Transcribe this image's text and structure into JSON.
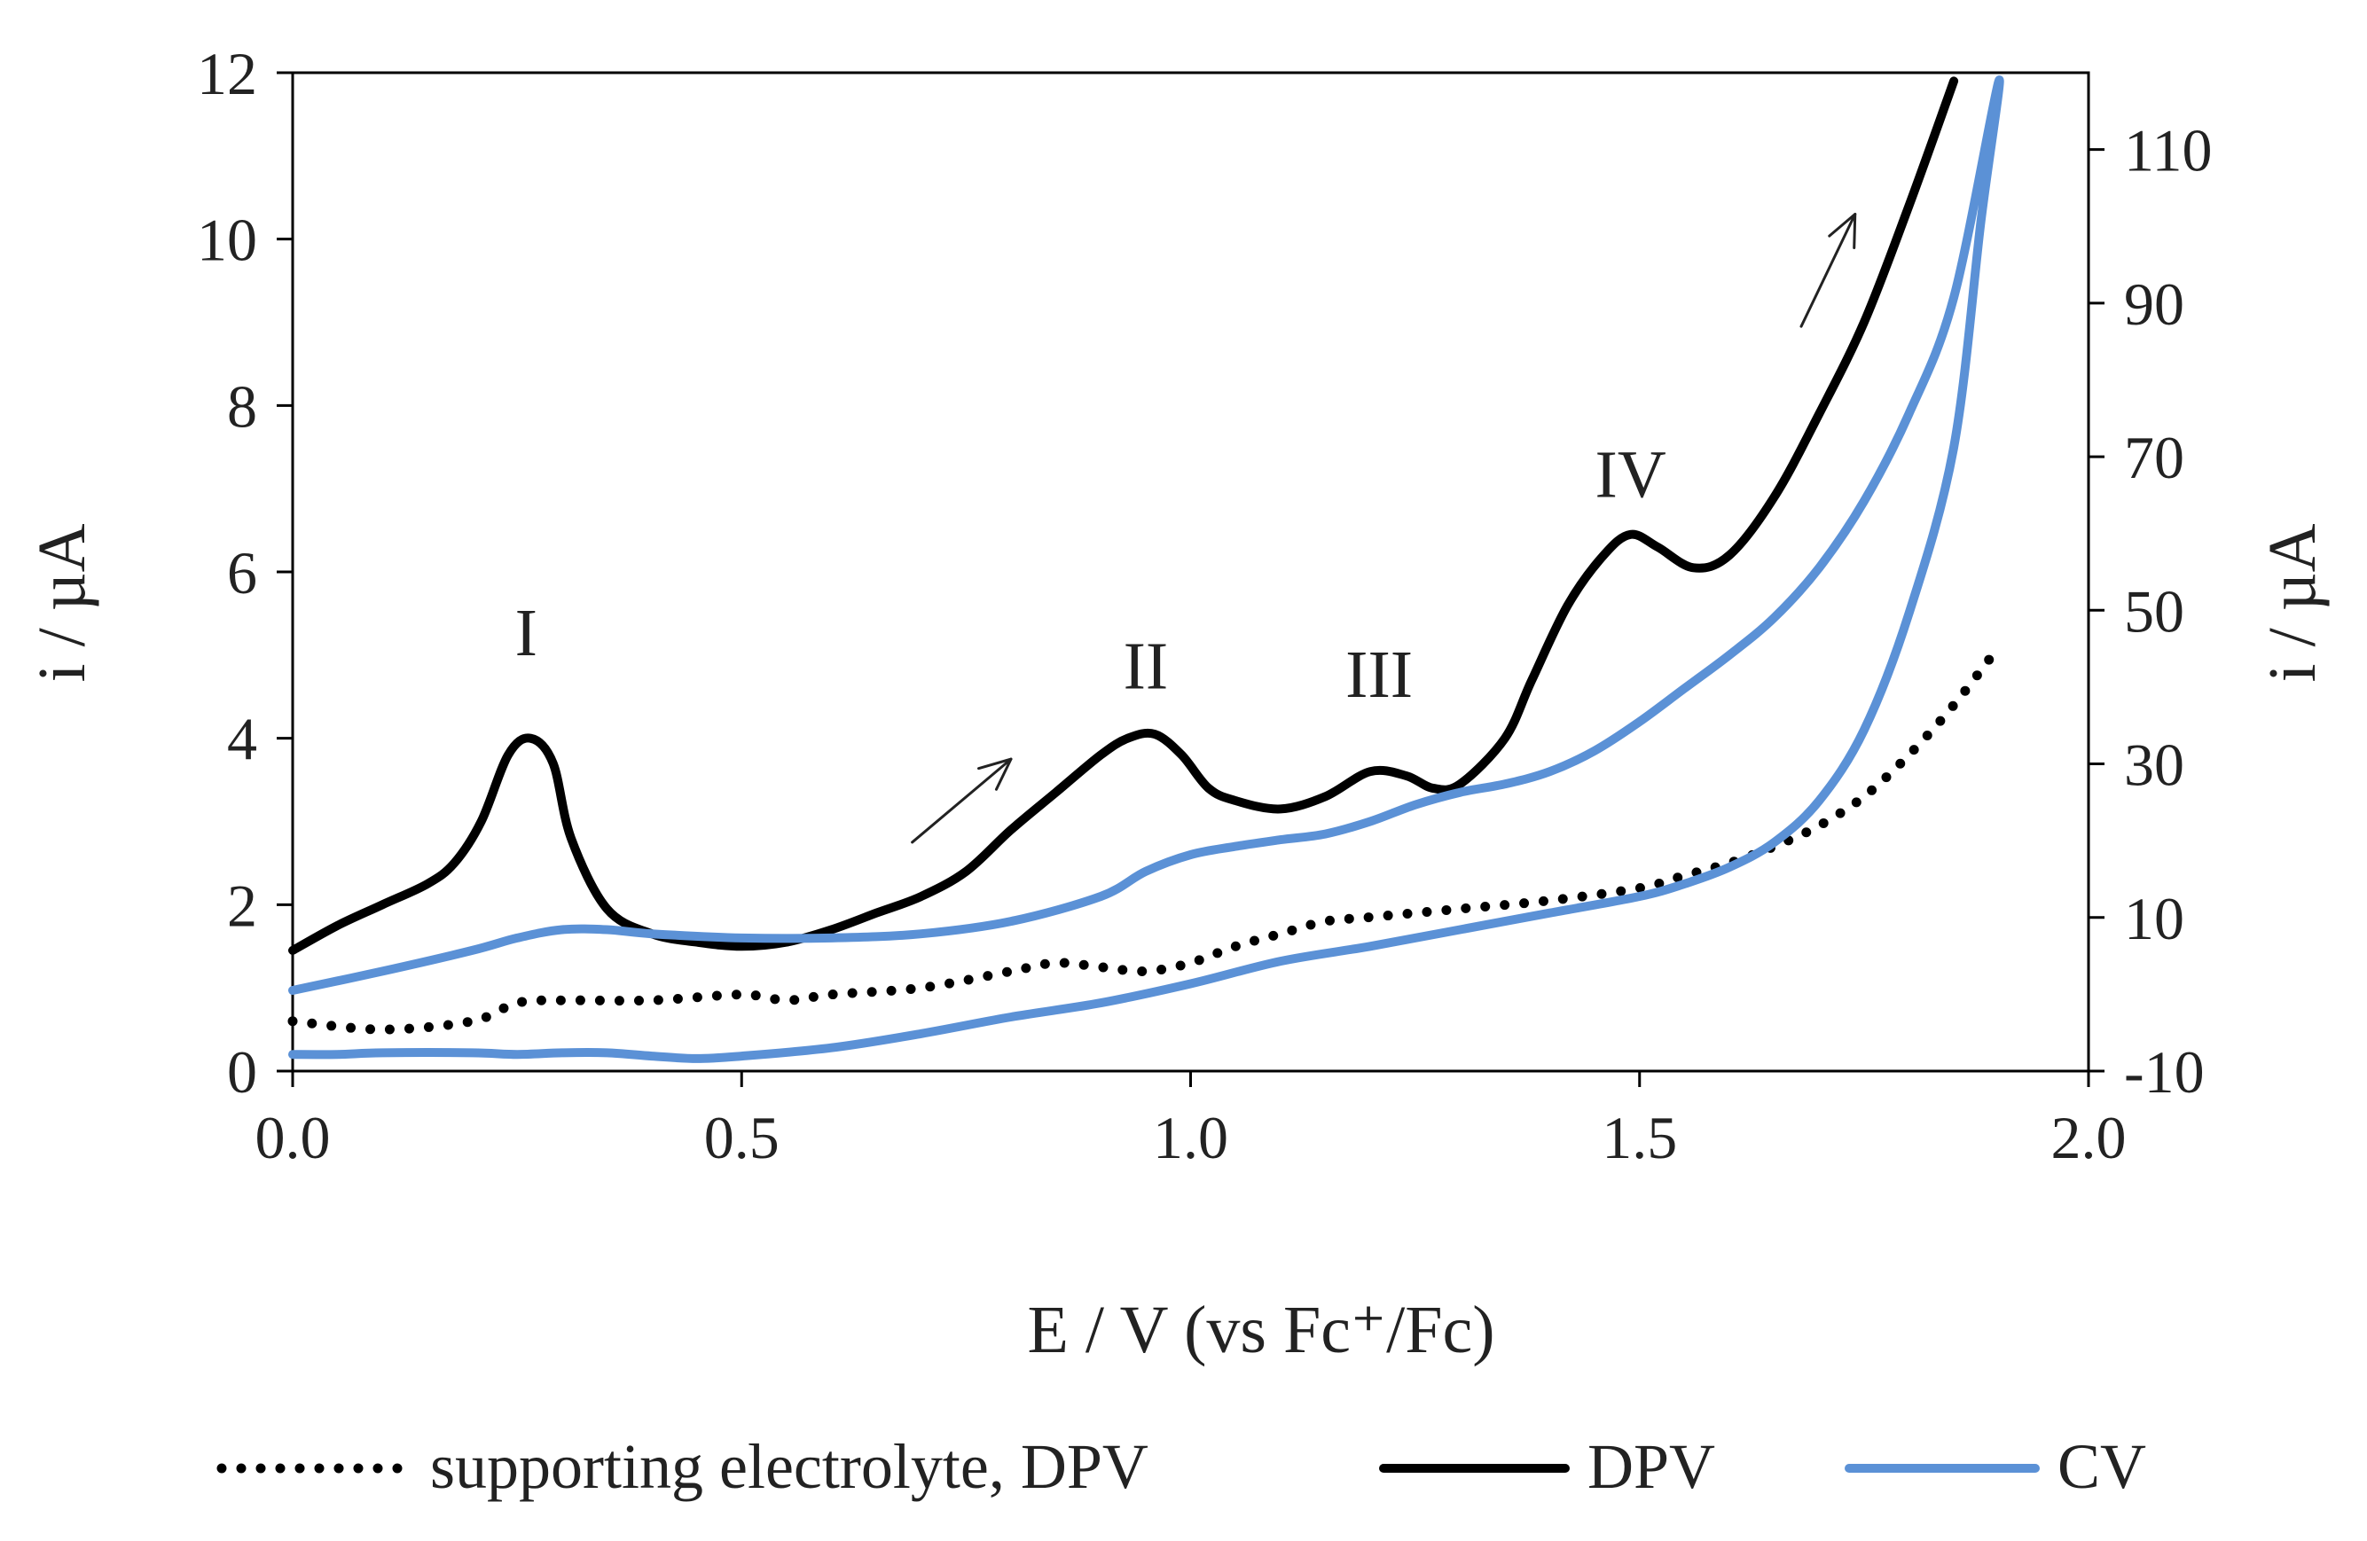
{
  "chart_data": {
    "type": "line",
    "title": "",
    "xlabel": "E / V (vs Fc⁺/Fc)",
    "ylabel_left": "i / µA",
    "ylabel_right": "i / µA",
    "xlim": [
      0,
      2
    ],
    "ylim_left": [
      0,
      12
    ],
    "ylim_right": [
      -10,
      120
    ],
    "x_ticks": [
      "0.0",
      "0.5",
      "1.0",
      "1.5",
      "2.0"
    ],
    "y_ticks_left": [
      "0",
      "2",
      "4",
      "6",
      "8",
      "10",
      "12"
    ],
    "y_ticks_right": [
      "-10",
      "10",
      "30",
      "50",
      "70",
      "90",
      "110"
    ],
    "grid": false,
    "legend_position": "bottom",
    "peak_labels": [
      {
        "text": "I",
        "x": 0.26,
        "y": 5.0
      },
      {
        "text": "II",
        "x": 0.95,
        "y": 4.6
      },
      {
        "text": "III",
        "x": 1.21,
        "y": 4.5
      },
      {
        "text": "IV",
        "x": 1.49,
        "y": 6.9
      }
    ],
    "arrows": [
      {
        "x1": 0.69,
        "y1": 2.75,
        "x2": 0.8,
        "y2": 3.75
      },
      {
        "x1": 1.68,
        "y1": 8.95,
        "x2": 1.74,
        "y2": 10.3
      }
    ],
    "series": [
      {
        "name": "supporting electrolyte, DPV",
        "axis": "left",
        "color": "#000000",
        "style": "dotted",
        "x": [
          0.0,
          0.1,
          0.2,
          0.25,
          0.3,
          0.4,
          0.5,
          0.55,
          0.6,
          0.7,
          0.8,
          0.85,
          0.9,
          0.95,
          1.0,
          1.05,
          1.1,
          1.15,
          1.2,
          1.3,
          1.4,
          1.5,
          1.55,
          1.6,
          1.65,
          1.7,
          1.75,
          1.8,
          1.85,
          1.9
        ],
        "y": [
          0.6,
          0.5,
          0.6,
          0.82,
          0.85,
          0.85,
          0.92,
          0.85,
          0.92,
          1.0,
          1.2,
          1.3,
          1.25,
          1.2,
          1.3,
          1.5,
          1.65,
          1.8,
          1.85,
          1.95,
          2.05,
          2.2,
          2.35,
          2.5,
          2.7,
          2.95,
          3.3,
          3.8,
          4.4,
          5.1
        ]
      },
      {
        "name": "DPV",
        "axis": "left",
        "color": "#000000",
        "style": "solid",
        "x": [
          0.0,
          0.05,
          0.1,
          0.15,
          0.18,
          0.21,
          0.24,
          0.265,
          0.29,
          0.31,
          0.35,
          0.4,
          0.45,
          0.5,
          0.55,
          0.6,
          0.65,
          0.7,
          0.75,
          0.8,
          0.85,
          0.9,
          0.93,
          0.96,
          0.99,
          1.02,
          1.05,
          1.1,
          1.15,
          1.2,
          1.24,
          1.27,
          1.3,
          1.35,
          1.38,
          1.42,
          1.46,
          1.49,
          1.52,
          1.56,
          1.6,
          1.65,
          1.7,
          1.75,
          1.8,
          1.85
        ],
        "y": [
          1.45,
          1.75,
          2.0,
          2.25,
          2.5,
          3.0,
          3.8,
          4.0,
          3.7,
          2.8,
          1.95,
          1.65,
          1.55,
          1.5,
          1.55,
          1.7,
          1.9,
          2.1,
          2.4,
          2.9,
          3.35,
          3.8,
          4.0,
          4.05,
          3.8,
          3.4,
          3.25,
          3.15,
          3.3,
          3.6,
          3.55,
          3.4,
          3.45,
          4.0,
          4.7,
          5.6,
          6.2,
          6.45,
          6.3,
          6.05,
          6.2,
          6.9,
          7.9,
          9.0,
          10.4,
          11.9
        ]
      },
      {
        "name": "CV",
        "axis": "left",
        "color": "#5b91d6",
        "style": "solid",
        "x": [
          0.0,
          0.1,
          0.2,
          0.25,
          0.3,
          0.35,
          0.4,
          0.5,
          0.6,
          0.7,
          0.8,
          0.9,
          0.95,
          1.0,
          1.05,
          1.1,
          1.15,
          1.2,
          1.25,
          1.3,
          1.35,
          1.4,
          1.45,
          1.5,
          1.55,
          1.6,
          1.65,
          1.7,
          1.75,
          1.8,
          1.85,
          1.9,
          1.88,
          1.85,
          1.8,
          1.75,
          1.7,
          1.65,
          1.6,
          1.55,
          1.5,
          1.4,
          1.3,
          1.2,
          1.1,
          1.0,
          0.9,
          0.8,
          0.7,
          0.6,
          0.5,
          0.45,
          0.4,
          0.35,
          0.3,
          0.25,
          0.2,
          0.1,
          0.05,
          0.0
        ],
        "y": [
          0.97,
          1.2,
          1.45,
          1.6,
          1.7,
          1.7,
          1.65,
          1.6,
          1.6,
          1.65,
          1.8,
          2.1,
          2.4,
          2.6,
          2.7,
          2.78,
          2.85,
          3.0,
          3.2,
          3.35,
          3.45,
          3.6,
          3.85,
          4.2,
          4.6,
          5.0,
          5.45,
          6.05,
          6.85,
          7.9,
          9.3,
          11.9,
          10.2,
          7.5,
          5.5,
          4.1,
          3.25,
          2.75,
          2.45,
          2.25,
          2.1,
          1.9,
          1.7,
          1.5,
          1.32,
          1.05,
          0.82,
          0.65,
          0.45,
          0.28,
          0.18,
          0.15,
          0.18,
          0.22,
          0.22,
          0.2,
          0.22,
          0.22,
          0.2,
          0.2
        ]
      }
    ]
  }
}
